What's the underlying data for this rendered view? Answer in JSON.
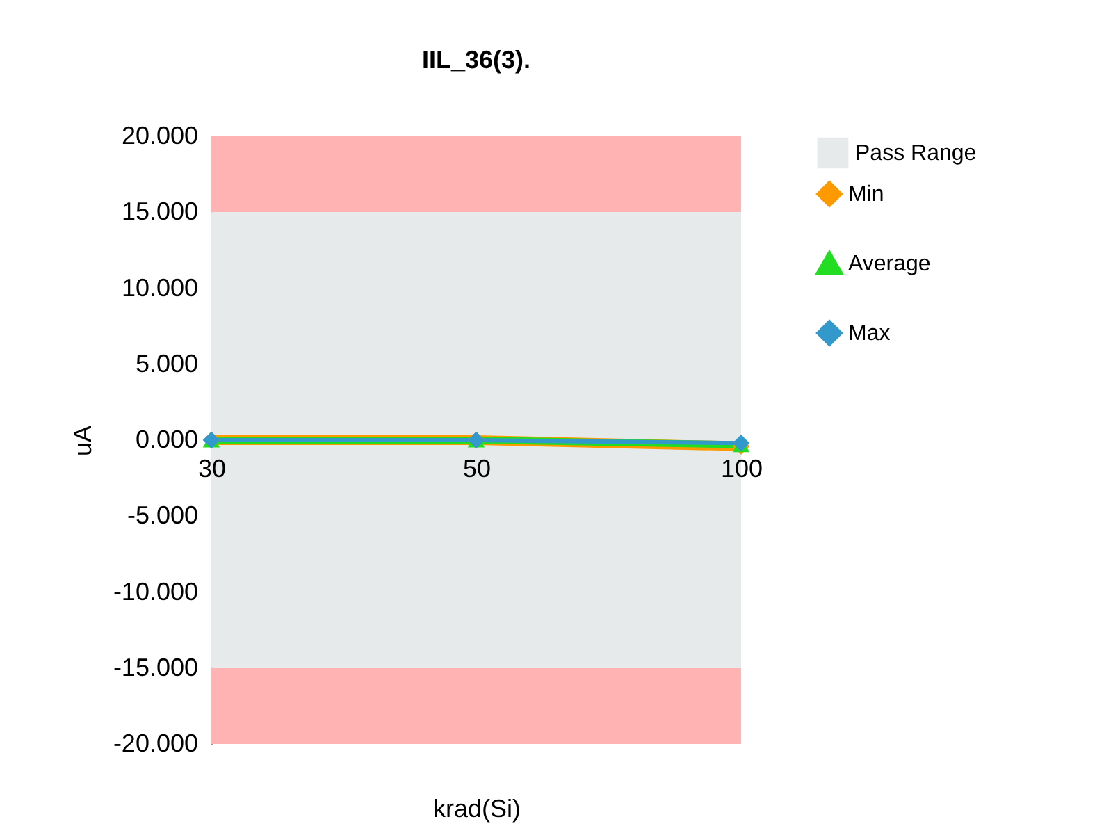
{
  "chart_data": {
    "type": "line",
    "title": "IIL_36(3).",
    "xlabel": "krad(Si)",
    "ylabel": "uA",
    "categories": [
      "30",
      "50",
      "100"
    ],
    "series": [
      {
        "name": "Min",
        "color": "#ff9900",
        "marker": "diamond",
        "values": [
          0,
          0,
          -0.4
        ]
      },
      {
        "name": "Average",
        "color": "#22dd22",
        "marker": "triangle",
        "values": [
          0,
          0,
          -0.3
        ]
      },
      {
        "name": "Max",
        "color": "#3399cc",
        "marker": "diamond",
        "values": [
          0,
          0,
          -0.2
        ]
      }
    ],
    "ylim": [
      -20,
      20
    ],
    "yticks": [
      {
        "value": -20,
        "label": "-20.000"
      },
      {
        "value": -15,
        "label": "-15.000"
      },
      {
        "value": -10,
        "label": "-10.000"
      },
      {
        "value": -5,
        "label": "-5.000"
      },
      {
        "value": 0,
        "label": "0.000"
      },
      {
        "value": 5,
        "label": "5.000"
      },
      {
        "value": 10,
        "label": "10.000"
      },
      {
        "value": 15,
        "label": "15.000"
      },
      {
        "value": 20,
        "label": "20.000"
      }
    ],
    "bands": [
      {
        "axis": "y",
        "from": 15,
        "to": 20,
        "color": "#ffb3b3"
      },
      {
        "axis": "y",
        "from": -15,
        "to": 15,
        "color": "#e6eaea",
        "label": "Pass Range"
      },
      {
        "axis": "y",
        "from": -20,
        "to": -15,
        "color": "#ffb3b3"
      }
    ],
    "grid": false,
    "legend": "right",
    "line_style": "solid"
  }
}
